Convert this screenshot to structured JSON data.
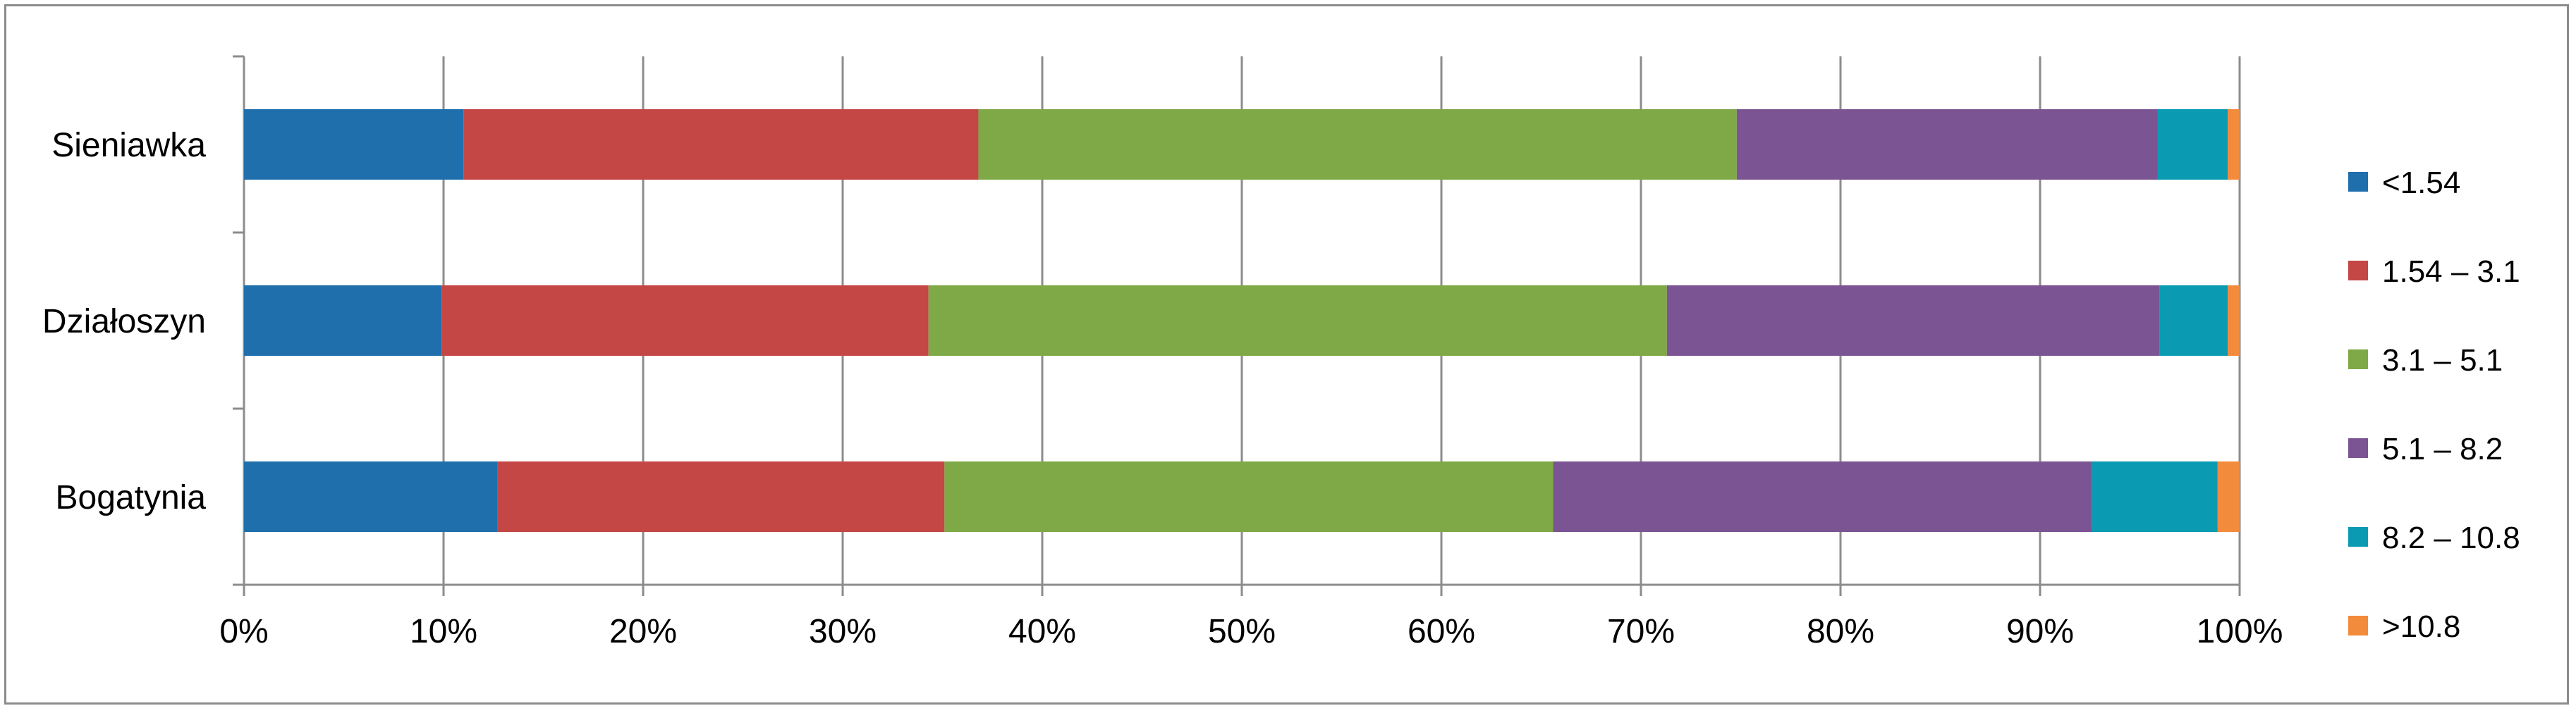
{
  "chart_data": {
    "type": "bar",
    "orientation": "horizontal",
    "stacked": "percent",
    "categories": [
      "Sieniawka",
      "Działoszyn",
      "Bogatynia"
    ],
    "series": [
      {
        "name": "<1.54",
        "color": "#1f6fad",
        "values": [
          11.0,
          9.9,
          12.7
        ]
      },
      {
        "name": "1.54 – 3.1",
        "color": "#c44645",
        "values": [
          25.8,
          24.4,
          22.4
        ]
      },
      {
        "name": "3.1 – 5.1",
        "color": "#7fa847",
        "values": [
          38.0,
          37.0,
          30.5
        ]
      },
      {
        "name": "5.1 – 8.2",
        "color": "#7b5593",
        "values": [
          21.1,
          24.7,
          27.0
        ]
      },
      {
        "name": "8.2 – 10.8",
        "color": "#0a9bb3",
        "values": [
          3.5,
          3.4,
          6.3
        ]
      },
      {
        "name": ">10.8",
        "color": "#f38b3c",
        "values": [
          0.6,
          0.6,
          1.1
        ]
      }
    ],
    "xlim": [
      0,
      100
    ],
    "xticks": [
      "0%",
      "10%",
      "20%",
      "30%",
      "40%",
      "50%",
      "60%",
      "70%",
      "80%",
      "90%",
      "100%"
    ],
    "grid": true,
    "legend_position": "right"
  }
}
